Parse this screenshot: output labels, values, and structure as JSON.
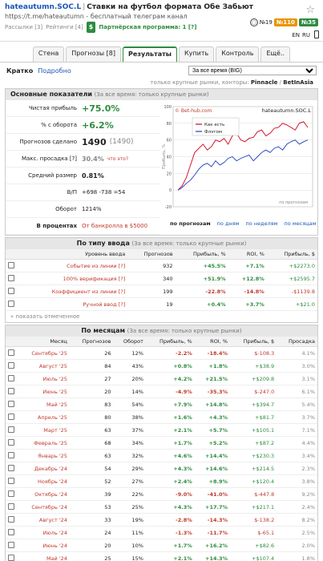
{
  "header": {
    "site": "hateautumn.SOC.L",
    "sep": "|",
    "title": "Ставки на футбол формата Обе Забьют",
    "url": "https://t.me/hateautumn - бесплатный телеграм канал",
    "subs": "Рассылки [3]",
    "ratings": "Рейтинги [4]",
    "dollar": "$",
    "partner": "Партнёрская программа: 1 [?]",
    "star": "☆",
    "badge1": "№19",
    "badge2": "№110",
    "badge3": "№35",
    "flag1": "EN",
    "flag2": "RU"
  },
  "tabs": [
    "Стена",
    "Прогнозы [8]",
    "Результаты",
    "Купить",
    "Контроль",
    "Ещё.."
  ],
  "subtabs": {
    "short": "Кратко",
    "detail": "Подробно",
    "period": "За все время (BIG)"
  },
  "note": {
    "prefix": "только крупные рынки, конторы:",
    "b1": "Pinnacle",
    "sep": "/",
    "b2": "BetInAsia"
  },
  "basic": {
    "title": "Основные показатели",
    "sub": "(За все время: только крупные рынки)",
    "rows": [
      {
        "label": "Чистая прибыль",
        "value": "+75.0%"
      },
      {
        "label": "% с оборота",
        "value": "+6.2%"
      },
      {
        "label": "Прогнозов сделано",
        "value": "1490",
        "extra": "(1490)"
      },
      {
        "label": "Макс. просадка [?]",
        "value": "30.4%",
        "extra": "что это?"
      },
      {
        "label": "Средний размер",
        "value": "0.81%"
      },
      {
        "label": "В/П",
        "value": "+698 -738 =54"
      },
      {
        "label": "Оборот",
        "value": "1214%"
      }
    ],
    "percent_label": "В процентах",
    "percent_val": "От банкролла в $5000"
  },
  "chart_data": {
    "type": "line",
    "title": "hateautumn.SOC.L",
    "copyright": "© Bet-hub.com",
    "ylabel": "Прибыль, %",
    "ylim": [
      -20,
      100
    ],
    "yticks": [
      -20,
      0,
      20,
      40,
      60,
      80,
      100
    ],
    "legend": [
      "Как есть",
      "Флэтом"
    ],
    "no_forecasts": "по прогнозам",
    "series": [
      {
        "name": "Как есть",
        "color": "#d0021b",
        "values": [
          0,
          5,
          15,
          30,
          45,
          50,
          55,
          48,
          52,
          60,
          58,
          62,
          55,
          65,
          68,
          60,
          58,
          62,
          63,
          70,
          72,
          65,
          68,
          74,
          75,
          80,
          78,
          75,
          72,
          80,
          82,
          75
        ]
      },
      {
        "name": "Флэтом",
        "color": "#1f3fbf",
        "values": [
          0,
          3,
          8,
          12,
          18,
          25,
          30,
          32,
          28,
          35,
          30,
          33,
          38,
          40,
          35,
          38,
          40,
          42,
          35,
          40,
          45,
          48,
          45,
          50,
          52,
          48,
          55,
          58,
          60,
          55,
          58,
          60
        ]
      }
    ],
    "links": [
      "по прогнозам",
      "по дням",
      "по неделям",
      "по месяцам"
    ]
  },
  "types": {
    "title": "По типу ввода",
    "sub": "(За все время: только крупные рынки)",
    "cols": [
      "Уровень ввода",
      "Прогнозов",
      "Прибыль, %",
      "ROI, %",
      "Прибыль, $"
    ],
    "rows": [
      {
        "name": "Событие из линии [?]",
        "n": "932",
        "p": "+45.5%",
        "roi": "+7.1%",
        "usd": "+$2273.0"
      },
      {
        "name": "100% верификация [?]",
        "n": "340",
        "p": "+51.9%",
        "roi": "+12.8%",
        "usd": "+$2595.7"
      },
      {
        "name": "Коэффициент из линии [?]",
        "n": "199",
        "p": "-22.8%",
        "roi": "-14.8%",
        "usd": "-$1139.8"
      },
      {
        "name": "Ручной ввод [?]",
        "n": "19",
        "p": "+0.4%",
        "roi": "+3.7%",
        "usd": "+$21.0"
      }
    ],
    "show": "» показать отмеченное"
  },
  "months": {
    "title": "По месяцам",
    "sub": "(За все время: только крупные рынки)",
    "cols": [
      "Месяц",
      "Прогнозов",
      "Оборот",
      "Прибыль, %",
      "ROI, %",
      "Прибыль, $",
      "Просадка"
    ],
    "rows": [
      {
        "m": "Сентябрь '25",
        "n": "26",
        "o": "12%",
        "p": "-2.2%",
        "r": "-18.4%",
        "u": "$-108.3",
        "d": "4.1%"
      },
      {
        "m": "Август '25",
        "n": "84",
        "o": "43%",
        "p": "+0.8%",
        "r": "+1.8%",
        "u": "+$38.9",
        "d": "3.0%"
      },
      {
        "m": "Июль '25",
        "n": "27",
        "o": "20%",
        "p": "+4.2%",
        "r": "+21.5%",
        "u": "+$209.8",
        "d": "3.1%"
      },
      {
        "m": "Июнь '25",
        "n": "20",
        "o": "14%",
        "p": "-4.9%",
        "r": "-35.3%",
        "u": "$-247.0",
        "d": "6.1%"
      },
      {
        "m": "Май '25",
        "n": "83",
        "o": "54%",
        "p": "+7.9%",
        "r": "+14.8%",
        "u": "+$394.7",
        "d": "5.4%"
      },
      {
        "m": "Апрель '25",
        "n": "80",
        "o": "38%",
        "p": "+1.6%",
        "r": "+4.3%",
        "u": "+$81.7",
        "d": "3.7%"
      },
      {
        "m": "Март '25",
        "n": "63",
        "o": "37%",
        "p": "+2.1%",
        "r": "+5.7%",
        "u": "+$105.1",
        "d": "7.1%"
      },
      {
        "m": "Февраль '25",
        "n": "68",
        "o": "34%",
        "p": "+1.7%",
        "r": "+5.2%",
        "u": "+$87.2",
        "d": "4.4%"
      },
      {
        "m": "Январь '25",
        "n": "63",
        "o": "32%",
        "p": "+4.6%",
        "r": "+14.4%",
        "u": "+$230.3",
        "d": "3.4%"
      },
      {
        "m": "Декабрь '24",
        "n": "54",
        "o": "29%",
        "p": "+4.3%",
        "r": "+14.6%",
        "u": "+$214.5",
        "d": "2.3%"
      },
      {
        "m": "Ноябрь '24",
        "n": "52",
        "o": "27%",
        "p": "+2.4%",
        "r": "+8.9%",
        "u": "+$120.4",
        "d": "3.8%"
      },
      {
        "m": "Октябрь '24",
        "n": "39",
        "o": "22%",
        "p": "-9.0%",
        "r": "-41.0%",
        "u": "$-447.8",
        "d": "9.2%"
      },
      {
        "m": "Сентябрь '24",
        "n": "53",
        "o": "25%",
        "p": "+4.3%",
        "r": "+17.7%",
        "u": "+$217.1",
        "d": "2.4%"
      },
      {
        "m": "Август '24",
        "n": "33",
        "o": "19%",
        "p": "-2.8%",
        "r": "-14.3%",
        "u": "$-138.2",
        "d": "8.2%"
      },
      {
        "m": "Июль '24",
        "n": "24",
        "o": "11%",
        "p": "-1.3%",
        "r": "-11.7%",
        "u": "$-65.1",
        "d": "2.5%"
      },
      {
        "m": "Июнь '24",
        "n": "20",
        "o": "10%",
        "p": "+1.7%",
        "r": "+16.2%",
        "u": "+$82.6",
        "d": "2.0%"
      },
      {
        "m": "Май '24",
        "n": "25",
        "o": "15%",
        "p": "+2.1%",
        "r": "+14.3%",
        "u": "+$107.4",
        "d": "1.8%"
      }
    ]
  }
}
